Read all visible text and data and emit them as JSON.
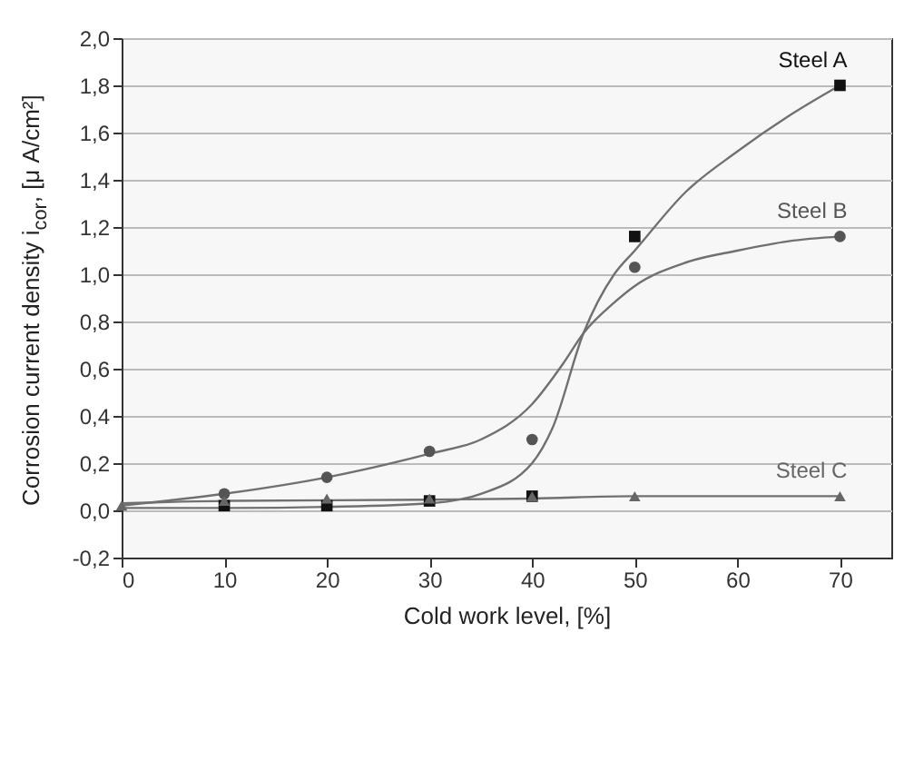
{
  "chart_data": {
    "type": "scatter",
    "xlabel": "Cold work level, [%]",
    "ylabel": "Corrosion current density i$_{cor}$, [μ A/cm²]",
    "xlim": [
      0,
      75
    ],
    "xticks": [
      0,
      10,
      20,
      30,
      40,
      50,
      60,
      70
    ],
    "ylim": [
      -0.2,
      2.0
    ],
    "yticks": [
      {
        "value": -0.2,
        "label": "-0,2"
      },
      {
        "value": 0,
        "label": "0,0"
      },
      {
        "value": 0.2,
        "label": "0,2"
      },
      {
        "value": 0.4,
        "label": "0,4"
      },
      {
        "value": 0.6,
        "label": "0,6"
      },
      {
        "value": 0.8,
        "label": "0,8"
      },
      {
        "value": 1.0,
        "label": "1,0"
      },
      {
        "value": 1.2,
        "label": "1,2"
      },
      {
        "value": 1.4,
        "label": "1,4"
      },
      {
        "value": 1.6,
        "label": "1,6"
      },
      {
        "value": 1.8,
        "label": "1,8"
      },
      {
        "value": 2.0,
        "label": "2,0"
      }
    ],
    "grid": "y",
    "x": [
      0,
      10,
      20,
      30,
      40,
      50,
      70
    ],
    "series": [
      {
        "type": "line",
        "color": "#707070",
        "marker": "none",
        "x": [
          0,
          10,
          20,
          30,
          35,
          40,
          42,
          45,
          48,
          50,
          55,
          60,
          65,
          70
        ],
        "values": [
          0.01,
          0.01,
          0.015,
          0.03,
          0.07,
          0.2,
          0.35,
          0.75,
          1.0,
          1.1,
          1.35,
          1.52,
          1.67,
          1.8
        ]
      },
      {
        "type": "line",
        "color": "#707070",
        "marker": "none",
        "x": [
          0,
          10,
          20,
          30,
          35,
          40,
          43,
          45,
          48,
          50,
          55,
          60,
          65,
          70
        ],
        "values": [
          0.02,
          0.07,
          0.14,
          0.24,
          0.3,
          0.45,
          0.62,
          0.75,
          0.88,
          0.95,
          1.05,
          1.1,
          1.14,
          1.16
        ]
      },
      {
        "type": "line",
        "color": "#707070",
        "marker": "none",
        "x": [
          0,
          10,
          30,
          40,
          50,
          70
        ],
        "values": [
          0.03,
          0.04,
          0.045,
          0.05,
          0.06,
          0.06
        ]
      },
      {
        "name": "Steel A",
        "color": "#111111",
        "marker": "square",
        "values": [
          null,
          0.02,
          0.02,
          0.04,
          0.06,
          1.16,
          1.8
        ]
      },
      {
        "name": "Steel B",
        "color": "#555555",
        "marker": "circle",
        "values": [
          null,
          0.07,
          0.14,
          0.25,
          0.3,
          1.03,
          1.16
        ]
      },
      {
        "name": "Steel C",
        "color": "#666666",
        "marker": "triangle",
        "values": [
          0.02,
          0.04,
          0.05,
          0.05,
          0.06,
          0.06,
          0.06
        ]
      }
    ]
  }
}
